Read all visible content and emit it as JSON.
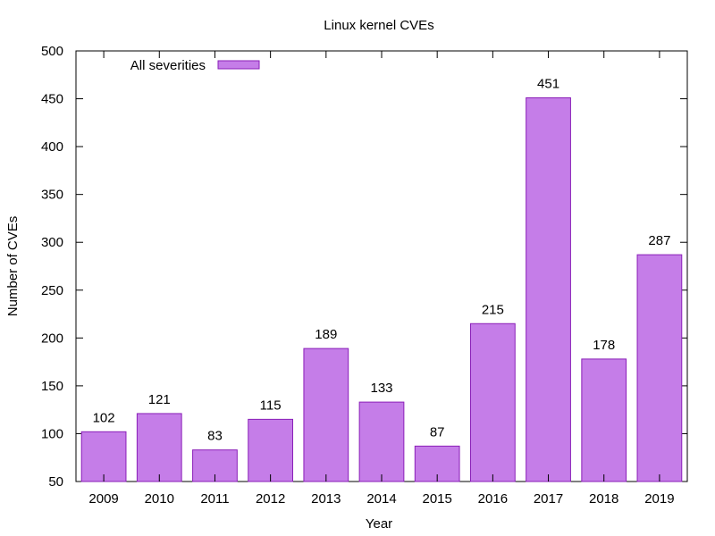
{
  "chart_data": {
    "type": "bar",
    "title": "Linux kernel CVEs",
    "xlabel": "Year",
    "ylabel": "Number of CVEs",
    "categories": [
      "2009",
      "2010",
      "2011",
      "2012",
      "2013",
      "2014",
      "2015",
      "2016",
      "2017",
      "2018",
      "2019"
    ],
    "series": [
      {
        "name": "All severities",
        "values": [
          102,
          121,
          83,
          115,
          189,
          133,
          87,
          215,
          451,
          178,
          287
        ],
        "color": "#c57de8"
      }
    ],
    "data_labels": [
      "102",
      "121",
      "83",
      "115",
      "189",
      "133",
      "87",
      "215",
      "451",
      "178",
      "287"
    ],
    "ylim": [
      50,
      500
    ],
    "yticks": [
      "50",
      "100",
      "150",
      "200",
      "250",
      "300",
      "350",
      "400",
      "450",
      "500"
    ],
    "grid": false,
    "legend_position": "top-left",
    "colors": {
      "bar_fill": "#c57de8",
      "bar_stroke": "#8a1fb8",
      "axis": "#000000"
    }
  }
}
